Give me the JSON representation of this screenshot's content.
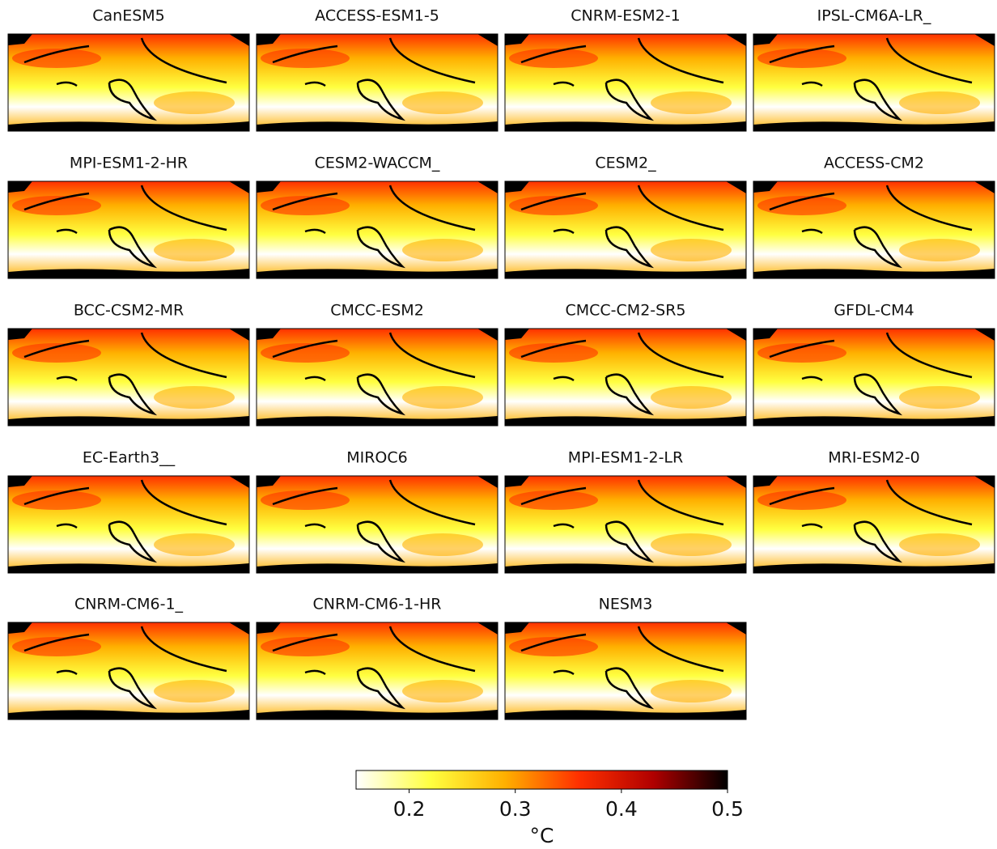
{
  "chart_data": {
    "type": "map-grid",
    "panels": [
      {
        "title": "CanESM5"
      },
      {
        "title": "ACCESS-ESM1-5"
      },
      {
        "title": "CNRM-ESM2-1"
      },
      {
        "title": "IPSL-CM6A-LR_"
      },
      {
        "title": "MPI-ESM1-2-HR"
      },
      {
        "title": "CESM2-WACCM_"
      },
      {
        "title": "CESM2_"
      },
      {
        "title": "ACCESS-CM2"
      },
      {
        "title": "BCC-CSM2-MR"
      },
      {
        "title": "CMCC-ESM2"
      },
      {
        "title": "CMCC-CM2-SR5"
      },
      {
        "title": "GFDL-CM4"
      },
      {
        "title": "EC-Earth3__"
      },
      {
        "title": "MIROC6"
      },
      {
        "title": "MPI-ESM1-2-LR"
      },
      {
        "title": "MRI-ESM2-0"
      },
      {
        "title": "CNRM-CM6-1_"
      },
      {
        "title": "CNRM-CM6-1-HR"
      },
      {
        "title": "NESM3"
      }
    ],
    "colorbar": {
      "clim": [
        0.15,
        0.5
      ],
      "ticks": [
        0.2,
        0.3,
        0.4,
        0.5
      ],
      "label": "°C",
      "colors": [
        "#ffffff",
        "#ffff40",
        "#ffb000",
        "#ff3000",
        "#b00000",
        "#000000"
      ]
    }
  }
}
